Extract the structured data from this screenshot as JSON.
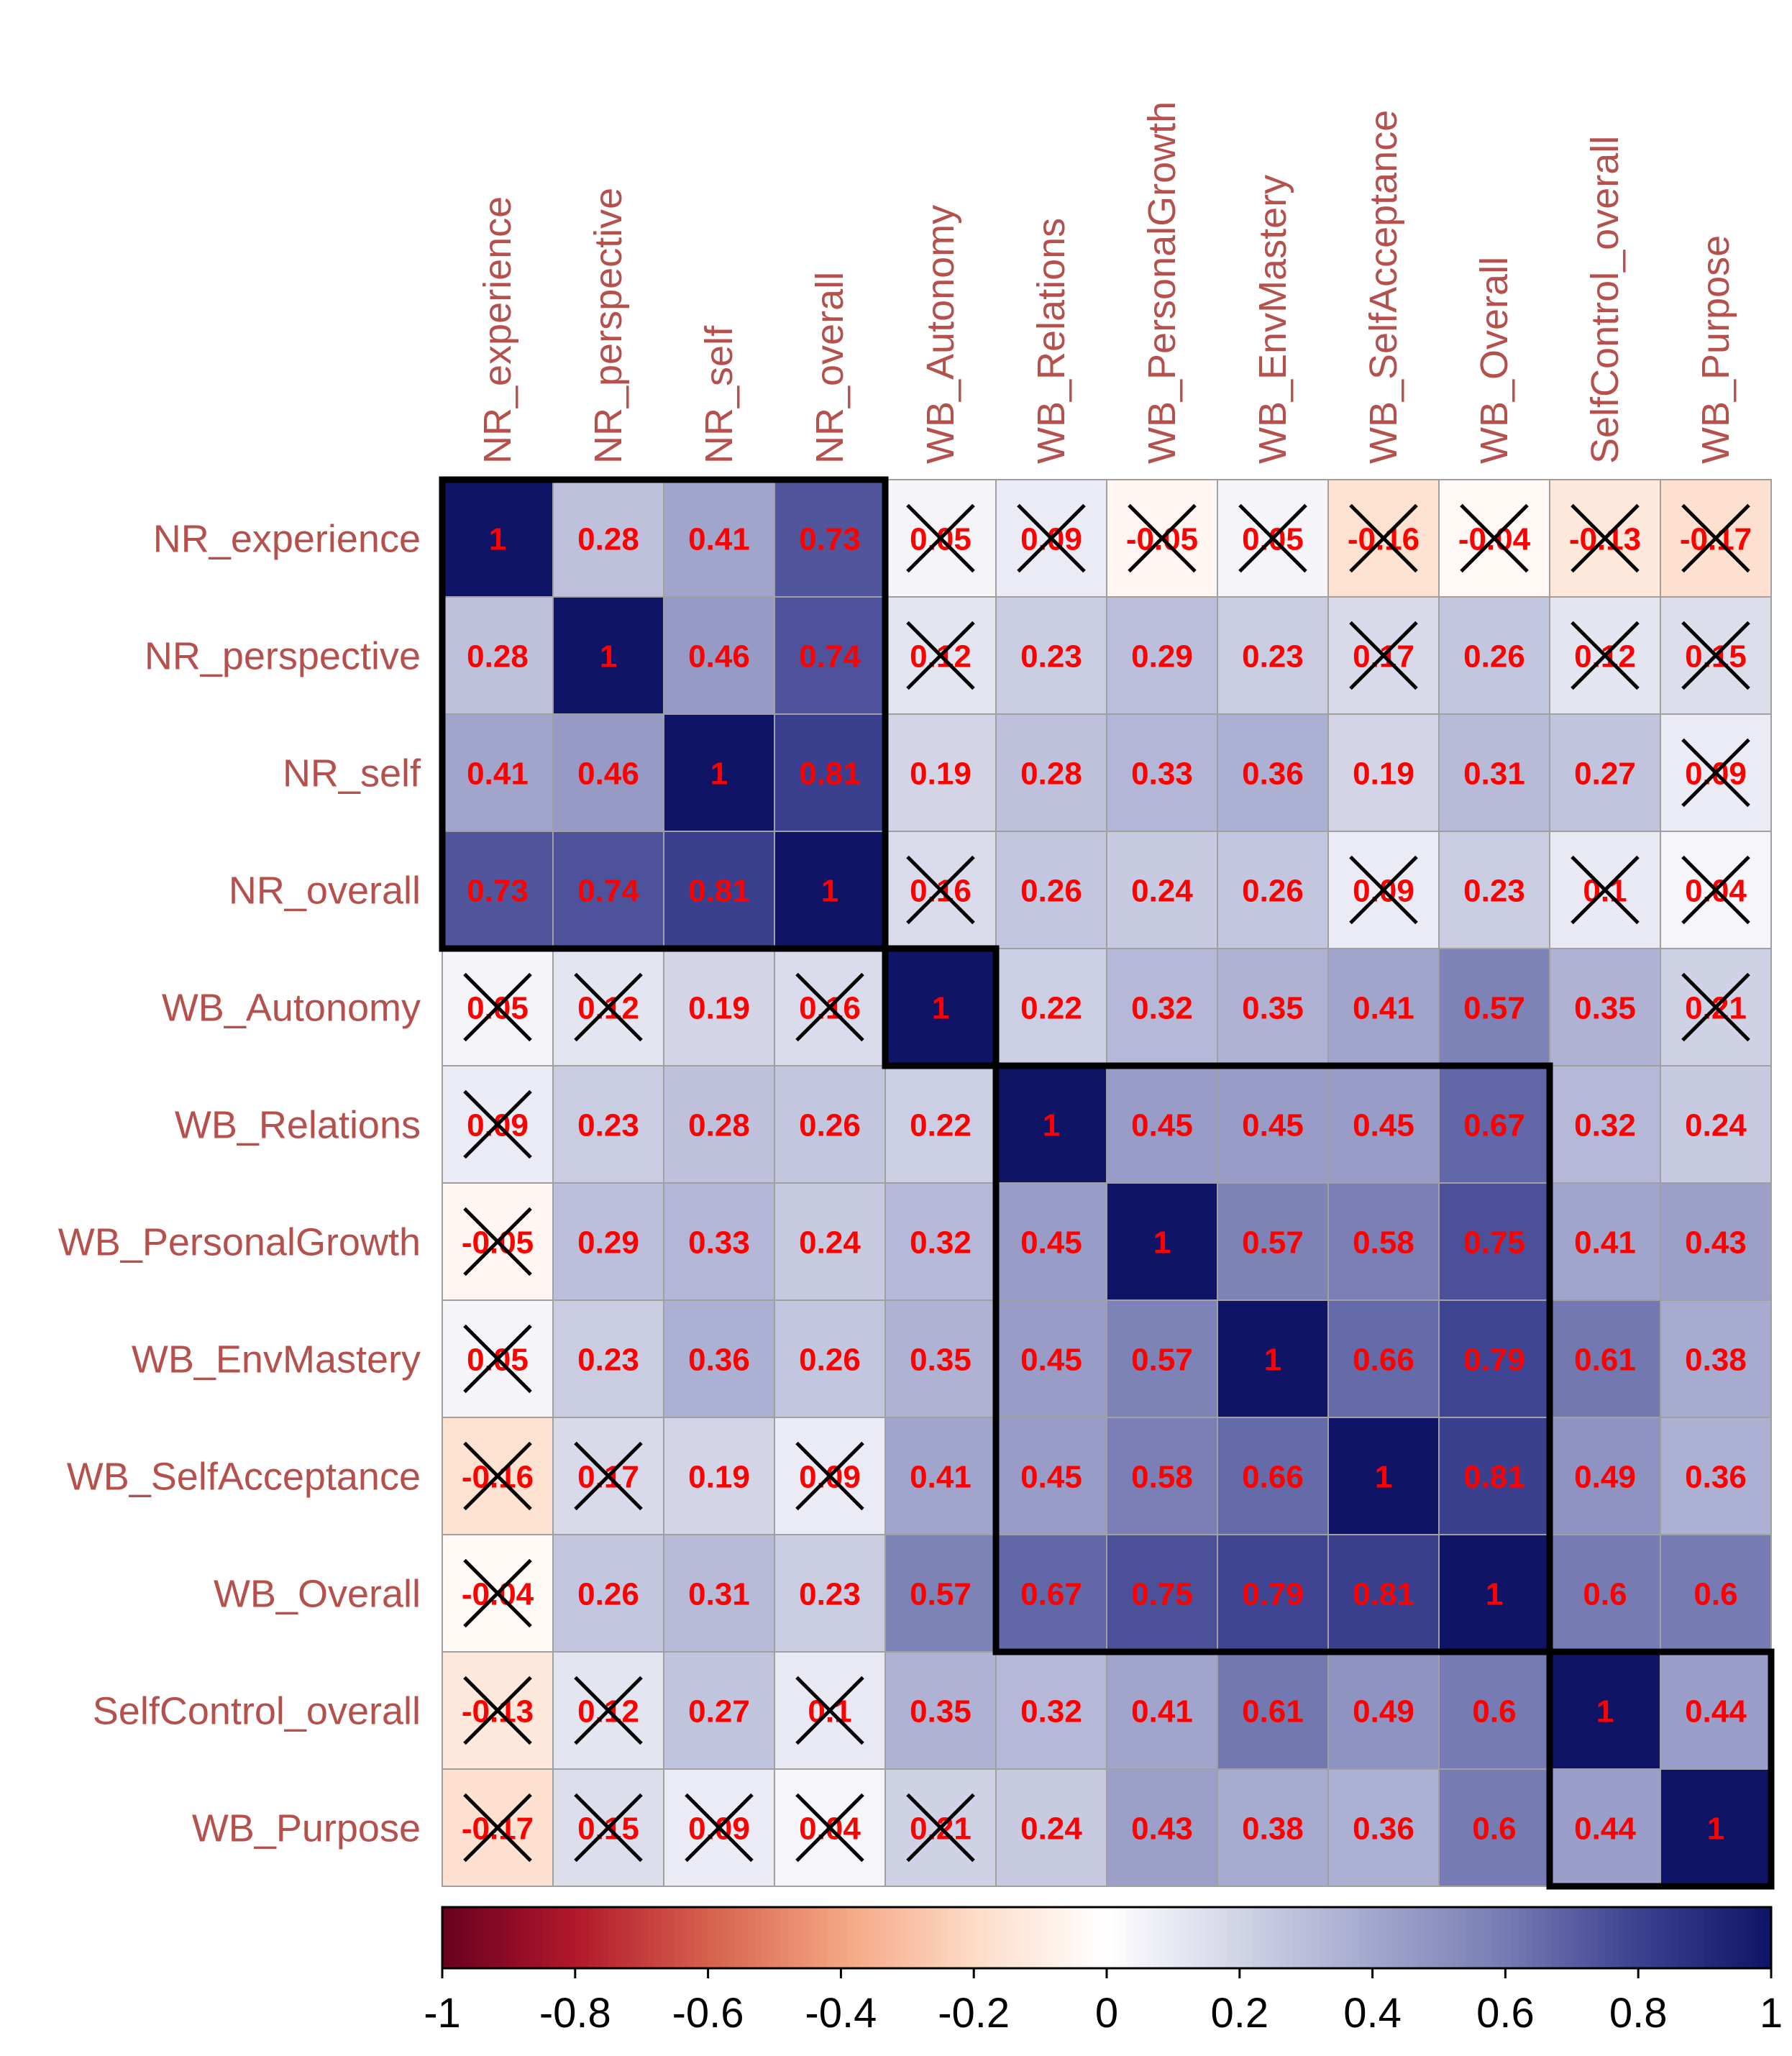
{
  "chart_data": {
    "type": "heatmap",
    "title": "",
    "variables": [
      "NR_experience",
      "NR_perspective",
      "NR_self",
      "NR_overall",
      "WB_Autonomy",
      "WB_Relations",
      "WB_PersonalGrowth",
      "WB_EnvMastery",
      "WB_SelfAcceptance",
      "WB_Overall",
      "SelfControl_overall",
      "WB_Purpose"
    ],
    "matrix": [
      [
        1,
        0.28,
        0.41,
        0.73,
        0.05,
        0.09,
        -0.05,
        0.05,
        -0.16,
        -0.04,
        -0.13,
        -0.17
      ],
      [
        0.28,
        1,
        0.46,
        0.74,
        0.12,
        0.23,
        0.29,
        0.23,
        0.17,
        0.26,
        0.12,
        0.15
      ],
      [
        0.41,
        0.46,
        1,
        0.81,
        0.19,
        0.28,
        0.33,
        0.36,
        0.19,
        0.31,
        0.27,
        0.09
      ],
      [
        0.73,
        0.74,
        0.81,
        1,
        0.16,
        0.26,
        0.24,
        0.26,
        0.09,
        0.23,
        0.1,
        0.04
      ],
      [
        0.05,
        0.12,
        0.19,
        0.16,
        1,
        0.22,
        0.32,
        0.35,
        0.41,
        0.57,
        0.35,
        0.21
      ],
      [
        0.09,
        0.23,
        0.28,
        0.26,
        0.22,
        1,
        0.45,
        0.45,
        0.45,
        0.67,
        0.32,
        0.24
      ],
      [
        -0.05,
        0.29,
        0.33,
        0.24,
        0.32,
        0.45,
        1,
        0.57,
        0.58,
        0.75,
        0.41,
        0.43
      ],
      [
        0.05,
        0.23,
        0.36,
        0.26,
        0.35,
        0.45,
        0.57,
        1,
        0.66,
        0.79,
        0.61,
        0.38
      ],
      [
        -0.16,
        0.17,
        0.19,
        0.09,
        0.41,
        0.45,
        0.58,
        0.66,
        1,
        0.81,
        0.49,
        0.36
      ],
      [
        -0.04,
        0.26,
        0.31,
        0.23,
        0.57,
        0.67,
        0.75,
        0.79,
        0.81,
        1,
        0.6,
        0.6
      ],
      [
        -0.13,
        0.12,
        0.27,
        0.1,
        0.35,
        0.32,
        0.41,
        0.61,
        0.49,
        0.6,
        1,
        0.44
      ],
      [
        -0.17,
        0.15,
        0.09,
        0.04,
        0.21,
        0.24,
        0.43,
        0.38,
        0.36,
        0.6,
        0.44,
        1
      ]
    ],
    "insignificant": [
      [
        0,
        4
      ],
      [
        0,
        5
      ],
      [
        0,
        6
      ],
      [
        0,
        7
      ],
      [
        0,
        8
      ],
      [
        0,
        9
      ],
      [
        0,
        10
      ],
      [
        0,
        11
      ],
      [
        1,
        4
      ],
      [
        1,
        8
      ],
      [
        1,
        10
      ],
      [
        1,
        11
      ],
      [
        2,
        11
      ],
      [
        3,
        4
      ],
      [
        3,
        8
      ],
      [
        3,
        10
      ],
      [
        3,
        11
      ],
      [
        4,
        0
      ],
      [
        4,
        1
      ],
      [
        4,
        3
      ],
      [
        4,
        11
      ],
      [
        5,
        0
      ],
      [
        6,
        0
      ],
      [
        7,
        0
      ],
      [
        8,
        0
      ],
      [
        8,
        1
      ],
      [
        8,
        3
      ],
      [
        9,
        0
      ],
      [
        10,
        0
      ],
      [
        10,
        1
      ],
      [
        10,
        3
      ],
      [
        11,
        0
      ],
      [
        11,
        1
      ],
      [
        11,
        2
      ],
      [
        11,
        3
      ],
      [
        11,
        4
      ]
    ],
    "clusters": [
      {
        "from": 0,
        "to": 3
      },
      {
        "from": 4,
        "to": 4
      },
      {
        "from": 5,
        "to": 9
      },
      {
        "from": 10,
        "to": 11
      }
    ],
    "colorbar": {
      "range": [
        -1,
        1
      ],
      "ticks": [
        "-1",
        "-0.8",
        "-0.6",
        "-0.4",
        "-0.2",
        "0",
        "0.2",
        "0.4",
        "0.6",
        "0.8",
        "1"
      ]
    },
    "colors": {
      "negative": "#67001f",
      "neutral": "#ffffff",
      "positive": "#0f1467",
      "label_text": "#b5504d",
      "cell_text": "#ff0000",
      "grid": "#a0a0a0",
      "cluster_border": "#000000"
    }
  }
}
